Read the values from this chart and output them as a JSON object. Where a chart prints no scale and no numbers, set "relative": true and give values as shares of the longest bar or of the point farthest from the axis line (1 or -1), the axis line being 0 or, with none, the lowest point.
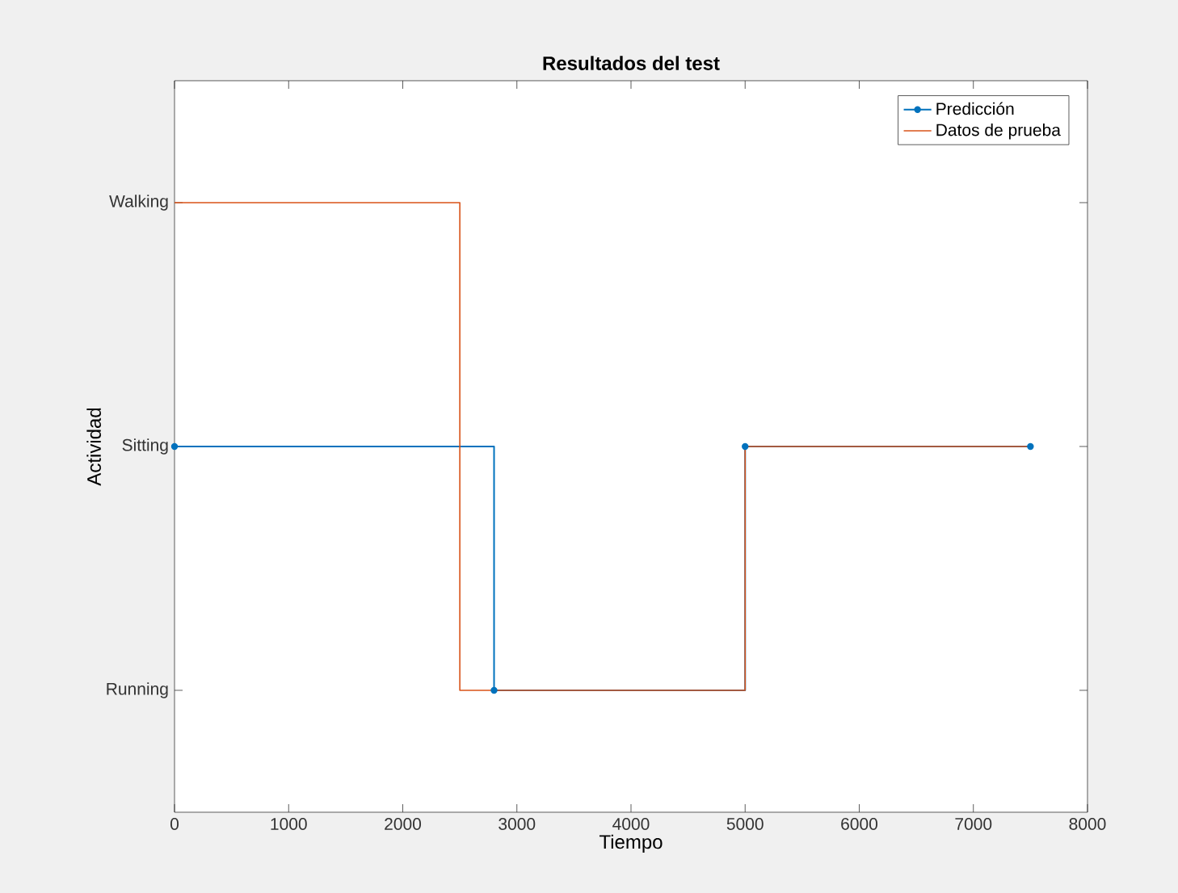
{
  "chart_data": {
    "type": "step",
    "title": "Resultados del test",
    "xlabel": "Tiempo",
    "ylabel": "Actividad",
    "xlim": [
      0,
      8000
    ],
    "xticks": [
      0,
      1000,
      2000,
      3000,
      4000,
      5000,
      6000,
      7000,
      8000
    ],
    "relative": true,
    "y_categories": [
      "Walking",
      "Sitting",
      "Running"
    ],
    "legend": "top right",
    "grid": false,
    "series": [
      {
        "name": "Predicción",
        "color": "#0072bd",
        "marker": "circle",
        "x": [
          0,
          2800,
          5000,
          7500
        ],
        "values": [
          0.5,
          0,
          0.5,
          0.5
        ]
      },
      {
        "name": "Datos de prueba",
        "color": "#d95319",
        "marker": "none",
        "x": [
          0,
          2500,
          5000,
          7500
        ],
        "values": [
          1,
          0,
          0.5,
          0.5
        ]
      }
    ]
  }
}
